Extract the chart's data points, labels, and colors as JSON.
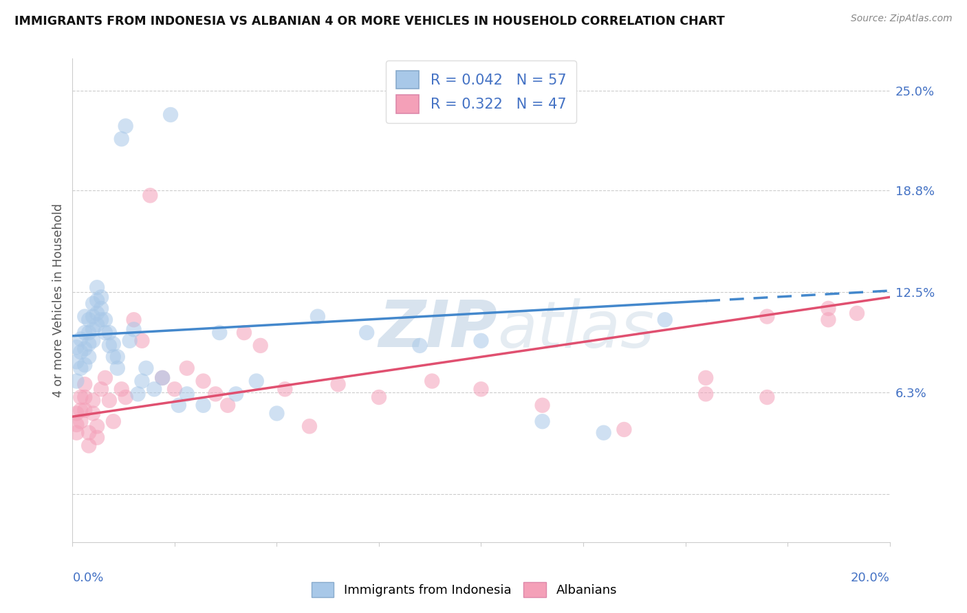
{
  "title": "IMMIGRANTS FROM INDONESIA VS ALBANIAN 4 OR MORE VEHICLES IN HOUSEHOLD CORRELATION CHART",
  "source": "Source: ZipAtlas.com",
  "ylabel": "4 or more Vehicles in Household",
  "xmin": 0.0,
  "xmax": 0.2,
  "ymin": -0.03,
  "ymax": 0.27,
  "ytick_vals": [
    0.0,
    0.063,
    0.125,
    0.188,
    0.25
  ],
  "ytick_labels": [
    "",
    "6.3%",
    "12.5%",
    "18.8%",
    "25.0%"
  ],
  "legend_blue_r": "0.042",
  "legend_blue_n": "57",
  "legend_pink_r": "0.322",
  "legend_pink_n": "47",
  "blue_scatter_color": "#a8c8e8",
  "pink_scatter_color": "#f4a0b8",
  "blue_line_color": "#4488cc",
  "pink_line_color": "#e05070",
  "watermark_color": "#d8e8f2",
  "blue_intercept": 0.098,
  "blue_slope": 0.14,
  "pink_intercept": 0.048,
  "pink_slope": 0.37,
  "indonesia_x": [
    0.001,
    0.001,
    0.001,
    0.002,
    0.002,
    0.002,
    0.003,
    0.003,
    0.003,
    0.003,
    0.004,
    0.004,
    0.004,
    0.004,
    0.005,
    0.005,
    0.005,
    0.005,
    0.006,
    0.006,
    0.006,
    0.006,
    0.007,
    0.007,
    0.007,
    0.008,
    0.008,
    0.009,
    0.009,
    0.01,
    0.01,
    0.011,
    0.011,
    0.012,
    0.013,
    0.014,
    0.015,
    0.016,
    0.017,
    0.018,
    0.02,
    0.022,
    0.024,
    0.026,
    0.028,
    0.032,
    0.036,
    0.04,
    0.045,
    0.05,
    0.06,
    0.072,
    0.085,
    0.1,
    0.115,
    0.13,
    0.145
  ],
  "indonesia_y": [
    0.07,
    0.082,
    0.091,
    0.078,
    0.088,
    0.096,
    0.08,
    0.09,
    0.1,
    0.11,
    0.085,
    0.093,
    0.1,
    0.108,
    0.095,
    0.102,
    0.11,
    0.118,
    0.105,
    0.112,
    0.12,
    0.128,
    0.108,
    0.115,
    0.122,
    0.1,
    0.108,
    0.092,
    0.1,
    0.085,
    0.093,
    0.078,
    0.085,
    0.22,
    0.228,
    0.095,
    0.102,
    0.062,
    0.07,
    0.078,
    0.065,
    0.072,
    0.235,
    0.055,
    0.062,
    0.055,
    0.1,
    0.062,
    0.07,
    0.05,
    0.11,
    0.1,
    0.092,
    0.095,
    0.045,
    0.038,
    0.108
  ],
  "albanian_x": [
    0.001,
    0.001,
    0.001,
    0.002,
    0.002,
    0.002,
    0.003,
    0.003,
    0.003,
    0.004,
    0.004,
    0.005,
    0.005,
    0.006,
    0.006,
    0.007,
    0.008,
    0.009,
    0.01,
    0.012,
    0.013,
    0.015,
    0.017,
    0.019,
    0.022,
    0.025,
    0.028,
    0.032,
    0.035,
    0.038,
    0.042,
    0.046,
    0.052,
    0.058,
    0.065,
    0.075,
    0.088,
    0.1,
    0.115,
    0.135,
    0.155,
    0.17,
    0.185,
    0.192,
    0.155,
    0.17,
    0.185
  ],
  "albanian_y": [
    0.05,
    0.043,
    0.038,
    0.06,
    0.052,
    0.045,
    0.068,
    0.06,
    0.052,
    0.038,
    0.03,
    0.058,
    0.05,
    0.042,
    0.035,
    0.065,
    0.072,
    0.058,
    0.045,
    0.065,
    0.06,
    0.108,
    0.095,
    0.185,
    0.072,
    0.065,
    0.078,
    0.07,
    0.062,
    0.055,
    0.1,
    0.092,
    0.065,
    0.042,
    0.068,
    0.06,
    0.07,
    0.065,
    0.055,
    0.04,
    0.072,
    0.06,
    0.108,
    0.112,
    0.062,
    0.11,
    0.115
  ]
}
